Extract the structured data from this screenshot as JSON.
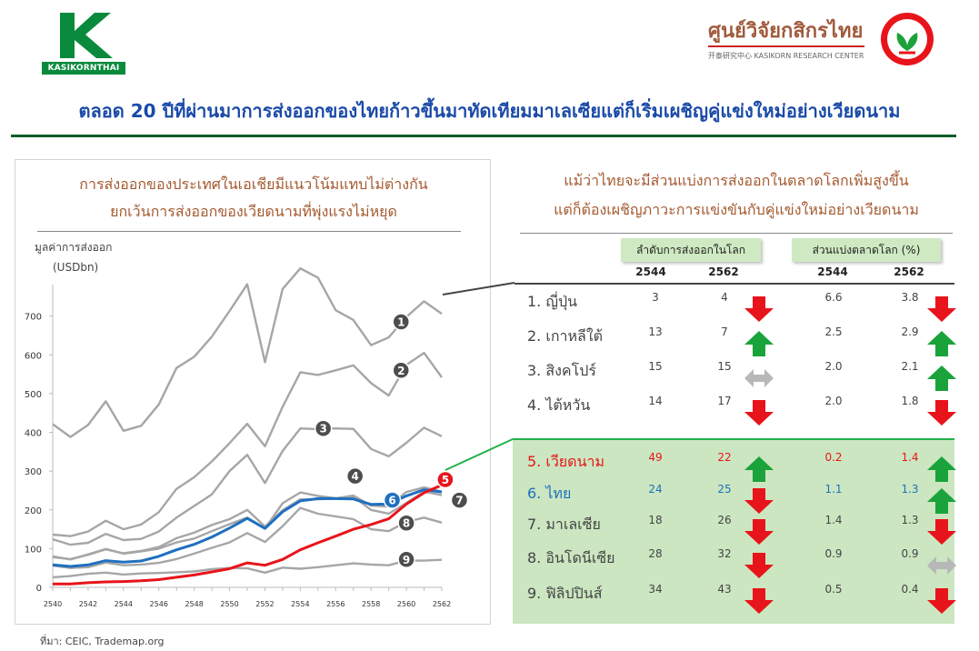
{
  "header": {
    "left_logo_text": "KASIKORNTHAI",
    "right_logo_thai": "ศูนย์วิจัยกสิกรไทย",
    "right_logo_sub": "开泰研究中心 KASIKORN RESEARCH CENTER",
    "headline": "ตลอด 20 ปีที่ผ่านมาการส่งออกของไทยก้าวขึ้นมาทัดเทียมมาเลเซียแต่ก็เริ่มเผชิญคู่แข่งใหม่อย่างเวียดนาม"
  },
  "left_panel": {
    "title_line1": "การส่งออกของประเทศในเอเชียมีแนวโน้มแทบไม่ต่างกัน",
    "title_line2": "ยกเว้นการส่งออกของเวียดนามที่พุ่งแรงไม่หยุด"
  },
  "chart_data": {
    "type": "line",
    "ylabel_line1": "มูลค่าการส่งออก",
    "ylabel_line2": "(USDbn)",
    "ylim": [
      0,
      800
    ],
    "yticks": [
      0,
      100,
      200,
      300,
      400,
      500,
      600,
      700
    ],
    "xlim": [
      2540,
      2562
    ],
    "xticks": [
      2540,
      2542,
      2544,
      2546,
      2548,
      2550,
      2552,
      2554,
      2556,
      2558,
      2560,
      2562
    ],
    "grid": false,
    "x": [
      2540,
      2541,
      2542,
      2543,
      2544,
      2545,
      2546,
      2547,
      2548,
      2549,
      2550,
      2551,
      2552,
      2553,
      2554,
      2555,
      2556,
      2557,
      2558,
      2559,
      2560,
      2561,
      2562
    ],
    "series": [
      {
        "badge": "1",
        "color": "#a6a6a6",
        "values": [
          421,
          388,
          419,
          480,
          404,
          417,
          472,
          566,
          595,
          647,
          713,
          782,
          581,
          770,
          823,
          799,
          715,
          690,
          625,
          645,
          698,
          738,
          706
        ]
      },
      {
        "badge": "2",
        "color": "#a6a6a6",
        "values": [
          136,
          132,
          144,
          172,
          150,
          162,
          194,
          254,
          284,
          325,
          372,
          422,
          364,
          466,
          555,
          548,
          560,
          573,
          527,
          495,
          574,
          605,
          542
        ]
      },
      {
        "badge": "3",
        "color": "#a6a6a6",
        "values": [
          124,
          110,
          115,
          138,
          122,
          125,
          144,
          180,
          210,
          240,
          300,
          342,
          269,
          352,
          410,
          408,
          410,
          409,
          357,
          338,
          373,
          412,
          390
        ]
      },
      {
        "badge": "4",
        "color": "#a6a6a6",
        "values": [
          80,
          72,
          85,
          99,
          87,
          93,
          100,
          116,
          126,
          145,
          163,
          180,
          152,
          217,
          245,
          236,
          230,
          237,
          211,
          208,
          246,
          258,
          247
        ]
      },
      {
        "badge": "5",
        "color": "#e8141b",
        "values": [
          9,
          9,
          12,
          14,
          15,
          17,
          20,
          26,
          32,
          40,
          48,
          63,
          57,
          72,
          97,
          115,
          132,
          150,
          162,
          177,
          215,
          244,
          264
        ]
      },
      {
        "badge": "6",
        "color": "#1f6fc0",
        "values": [
          58,
          54,
          58,
          69,
          65,
          68,
          80,
          97,
          111,
          130,
          153,
          178,
          152,
          195,
          223,
          229,
          229,
          228,
          214,
          215,
          236,
          252,
          246
        ]
      },
      {
        "badge": "7",
        "color": "#a6a6a6",
        "values": [
          78,
          73,
          84,
          98,
          88,
          94,
          104,
          127,
          141,
          161,
          176,
          200,
          157,
          199,
          227,
          227,
          229,
          234,
          200,
          190,
          218,
          247,
          238
        ]
      },
      {
        "badge": "8",
        "color": "#a6a6a6",
        "values": [
          56,
          50,
          52,
          64,
          57,
          59,
          63,
          73,
          87,
          102,
          116,
          140,
          117,
          158,
          205,
          190,
          183,
          176,
          150,
          145,
          169,
          180,
          167
        ]
      },
      {
        "badge": "9",
        "color": "#a6a6a6",
        "values": [
          26,
          29,
          35,
          38,
          33,
          36,
          37,
          39,
          41,
          47,
          50,
          49,
          38,
          51,
          48,
          52,
          57,
          62,
          59,
          57,
          69,
          69,
          71
        ]
      }
    ]
  },
  "right_panel": {
    "title_line1": "แม้ว่าไทยจะมีส่วนแบ่งการส่งออกในตลาดโลกเพิ่มสูงขึ้น",
    "title_line2": "แต่ก็ต้องเผชิญภาวะการแข่งขันกับคู่แข่งใหม่อย่างเวียดนาม",
    "header_rank": "ลำดับการส่งออกในโลก",
    "header_share": "ส่วนแบ่งตลาดโลก (%)",
    "years": [
      "2544",
      "2562",
      "2544",
      "2562"
    ],
    "rows": [
      {
        "name": "1. ญี่ปุ่น",
        "rank_2544": "3",
        "rank_2562": "4",
        "rank_arrow": "down",
        "share_2544": "6.6",
        "share_2562": "3.8",
        "share_arrow": "down",
        "text_color": "#444444"
      },
      {
        "name": "2. เกาหลีใต้",
        "rank_2544": "13",
        "rank_2562": "7",
        "rank_arrow": "up",
        "share_2544": "2.5",
        "share_2562": "2.9",
        "share_arrow": "up",
        "text_color": "#444444"
      },
      {
        "name": "3. สิงคโปร์",
        "rank_2544": "15",
        "rank_2562": "15",
        "rank_arrow": "flat",
        "share_2544": "2.0",
        "share_2562": "2.1",
        "share_arrow": "up",
        "text_color": "#444444"
      },
      {
        "name": "4. ไต้หวัน",
        "rank_2544": "14",
        "rank_2562": "17",
        "rank_arrow": "down",
        "share_2544": "2.0",
        "share_2562": "1.8",
        "share_arrow": "down",
        "text_color": "#444444"
      },
      {
        "name": "5. เวียดนาม",
        "rank_2544": "49",
        "rank_2562": "22",
        "rank_arrow": "up",
        "share_2544": "0.2",
        "share_2562": "1.4",
        "share_arrow": "up",
        "text_color": "#e8141b"
      },
      {
        "name": "6. ไทย",
        "rank_2544": "24",
        "rank_2562": "25",
        "rank_arrow": "down",
        "share_2544": "1.1",
        "share_2562": "1.3",
        "share_arrow": "up",
        "text_color": "#1f6fc0"
      },
      {
        "name": "7. มาเลเซีย",
        "rank_2544": "18",
        "rank_2562": "26",
        "rank_arrow": "down",
        "share_2544": "1.4",
        "share_2562": "1.3",
        "share_arrow": "down",
        "text_color": "#444444"
      },
      {
        "name": "8. อินโดนีเซีย",
        "rank_2544": "28",
        "rank_2562": "32",
        "rank_arrow": "down",
        "share_2544": "0.9",
        "share_2562": "0.9",
        "share_arrow": "flat",
        "text_color": "#444444"
      },
      {
        "name": "9. ฟิลิปปินส์",
        "rank_2544": "34",
        "rank_2562": "43",
        "rank_arrow": "down",
        "share_2544": "0.5",
        "share_2562": "0.4",
        "share_arrow": "down",
        "text_color": "#444444"
      }
    ]
  },
  "colors": {
    "arrow_up": "#1aa33a",
    "arrow_down": "#e8141b",
    "arrow_flat": "#b8b8b8",
    "headline": "#1a4aa8",
    "brand_green": "#0a8a3c"
  },
  "footer": {
    "source": "ที่มา: CEIC, Trademap.org"
  }
}
